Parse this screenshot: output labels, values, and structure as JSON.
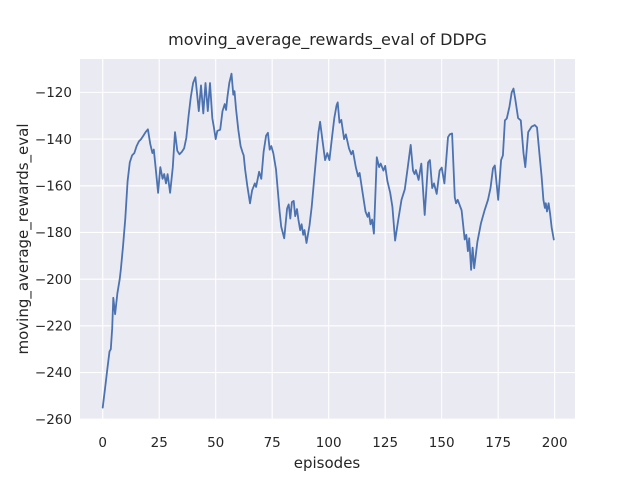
{
  "chart_data": {
    "type": "line",
    "title": "moving_average_rewards_eval of DDPG",
    "xlabel": "episodes",
    "ylabel": "moving_average_rewards_eval",
    "xlim": [
      -10.05,
      209.0
    ],
    "ylim": [
      -259.9,
      -105.7
    ],
    "grid": true,
    "legend_position": "none",
    "x_ticks": [
      0,
      25,
      50,
      75,
      100,
      125,
      150,
      175,
      200
    ],
    "x_tick_labels": [
      "0",
      "25",
      "50",
      "75",
      "100",
      "125",
      "150",
      "175",
      "200"
    ],
    "y_ticks": [
      -120,
      -140,
      -160,
      -180,
      -200,
      -220,
      -240,
      -260
    ],
    "y_tick_labels": [
      "−120",
      "−140",
      "−160",
      "−180",
      "−200",
      "−220",
      "−240",
      "−260"
    ],
    "style": {
      "line_color": "#4C72B0",
      "plot_bg": "#EAEAF2",
      "grid_color": "#FFFFFF",
      "text_color": "#262626",
      "tick_color": "#262626",
      "figure_bg": "#FFFFFF"
    },
    "series": [
      {
        "name": "moving_average_rewards_eval",
        "points": [
          [
            0,
            -255
          ],
          [
            1,
            -247
          ],
          [
            2,
            -239
          ],
          [
            3,
            -231
          ],
          [
            3.6,
            -230
          ],
          [
            4.2,
            -221
          ],
          [
            4.7,
            -208
          ],
          [
            5.5,
            -215
          ],
          [
            6.5,
            -206
          ],
          [
            7.5,
            -200
          ],
          [
            8,
            -196
          ],
          [
            9,
            -186
          ],
          [
            10,
            -174
          ],
          [
            11,
            -158
          ],
          [
            12,
            -150
          ],
          [
            13,
            -147
          ],
          [
            14,
            -146
          ],
          [
            15,
            -143
          ],
          [
            16,
            -141
          ],
          [
            17,
            -140
          ],
          [
            18,
            -138.5
          ],
          [
            19,
            -137
          ],
          [
            20,
            -135.8
          ],
          [
            21,
            -142
          ],
          [
            22,
            -146
          ],
          [
            22.6,
            -144.5
          ],
          [
            23.5,
            -153
          ],
          [
            24.5,
            -163
          ],
          [
            25.5,
            -152
          ],
          [
            26.5,
            -157
          ],
          [
            27.2,
            -155
          ],
          [
            28,
            -159
          ],
          [
            28.7,
            -155
          ],
          [
            29.8,
            -163
          ],
          [
            31,
            -152
          ],
          [
            32,
            -137
          ],
          [
            33,
            -145
          ],
          [
            34,
            -146.5
          ],
          [
            35,
            -145.5
          ],
          [
            36,
            -144
          ],
          [
            37,
            -139.5
          ],
          [
            38,
            -130
          ],
          [
            39,
            -122
          ],
          [
            40,
            -116
          ],
          [
            41,
            -113.5
          ],
          [
            42.5,
            -128
          ],
          [
            43.5,
            -117
          ],
          [
            44.5,
            -129
          ],
          [
            45.5,
            -116
          ],
          [
            46.5,
            -128
          ],
          [
            47.5,
            -116
          ],
          [
            48.5,
            -131
          ],
          [
            49.2,
            -135
          ],
          [
            50,
            -140
          ],
          [
            50.7,
            -136.5
          ],
          [
            52,
            -136
          ],
          [
            53,
            -128
          ],
          [
            54,
            -125
          ],
          [
            54.6,
            -127.5
          ],
          [
            55.2,
            -122
          ],
          [
            56,
            -116
          ],
          [
            57,
            -112
          ],
          [
            57.8,
            -121
          ],
          [
            58.3,
            -119.5
          ],
          [
            59,
            -127
          ],
          [
            60,
            -136
          ],
          [
            61,
            -143
          ],
          [
            61.8,
            -145.5
          ],
          [
            62.4,
            -147
          ],
          [
            63,
            -153
          ],
          [
            64,
            -160
          ],
          [
            65.2,
            -167.5
          ],
          [
            66.1,
            -162
          ],
          [
            67.3,
            -159
          ],
          [
            67.9,
            -160.5
          ],
          [
            69.2,
            -154
          ],
          [
            70.2,
            -157
          ],
          [
            71.2,
            -145.5
          ],
          [
            72.3,
            -138.5
          ],
          [
            73.1,
            -137.3
          ],
          [
            73.9,
            -144.5
          ],
          [
            74.6,
            -143
          ],
          [
            75.5,
            -146
          ],
          [
            76.7,
            -153
          ],
          [
            77.6,
            -163.5
          ],
          [
            78.3,
            -171
          ],
          [
            79,
            -177.5
          ],
          [
            80.3,
            -182.5
          ],
          [
            81.6,
            -169.7
          ],
          [
            82.3,
            -168
          ],
          [
            83,
            -174
          ],
          [
            83.7,
            -167
          ],
          [
            84.5,
            -166.5
          ],
          [
            85.2,
            -173
          ],
          [
            86,
            -170
          ],
          [
            86.6,
            -174.5
          ],
          [
            87.4,
            -179
          ],
          [
            88,
            -176.5
          ],
          [
            88.7,
            -181
          ],
          [
            89.3,
            -179
          ],
          [
            90.2,
            -184.5
          ],
          [
            91.5,
            -177
          ],
          [
            92.5,
            -169
          ],
          [
            93.5,
            -158
          ],
          [
            94.5,
            -147
          ],
          [
            95.5,
            -137
          ],
          [
            96.2,
            -132.6
          ],
          [
            97.3,
            -141
          ],
          [
            98.4,
            -149
          ],
          [
            99.4,
            -146
          ],
          [
            100.3,
            -149
          ],
          [
            101.5,
            -139
          ],
          [
            102.5,
            -131
          ],
          [
            103.5,
            -125.5
          ],
          [
            104,
            -124.3
          ],
          [
            104.8,
            -133
          ],
          [
            105.6,
            -131.8
          ],
          [
            106.8,
            -140
          ],
          [
            107.6,
            -138
          ],
          [
            109,
            -144
          ],
          [
            110,
            -146.5
          ],
          [
            110.7,
            -145
          ],
          [
            112,
            -152
          ],
          [
            113,
            -156
          ],
          [
            113.7,
            -154.5
          ],
          [
            115,
            -163
          ],
          [
            116.3,
            -171
          ],
          [
            117.2,
            -173.3
          ],
          [
            117.8,
            -171.5
          ],
          [
            118.5,
            -176.5
          ],
          [
            119.2,
            -174.5
          ],
          [
            120,
            -180.5
          ],
          [
            121.3,
            -147.8
          ],
          [
            122.3,
            -152
          ],
          [
            123,
            -150.5
          ],
          [
            124.2,
            -153.5
          ],
          [
            125,
            -151.5
          ],
          [
            126,
            -158
          ],
          [
            127.2,
            -163
          ],
          [
            128.2,
            -169
          ],
          [
            129.4,
            -183.5
          ],
          [
            130.8,
            -174.5
          ],
          [
            132.2,
            -166
          ],
          [
            133.7,
            -161.5
          ],
          [
            135,
            -152
          ],
          [
            136.3,
            -142.5
          ],
          [
            137.3,
            -153.5
          ],
          [
            138,
            -155
          ],
          [
            138.6,
            -153.3
          ],
          [
            139.8,
            -157.5
          ],
          [
            141,
            -150.5
          ],
          [
            142.5,
            -172.5
          ],
          [
            144,
            -150
          ],
          [
            144.8,
            -149
          ],
          [
            145.8,
            -161
          ],
          [
            146.6,
            -159
          ],
          [
            147.8,
            -163.5
          ],
          [
            149.1,
            -153.5
          ],
          [
            150,
            -152.2
          ],
          [
            151.2,
            -159
          ],
          [
            152.8,
            -139.2
          ],
          [
            153.6,
            -138
          ],
          [
            154.6,
            -137.6
          ],
          [
            155.8,
            -165
          ],
          [
            156.4,
            -167.5
          ],
          [
            157.1,
            -166
          ],
          [
            158.8,
            -170.5
          ],
          [
            160.2,
            -183
          ],
          [
            160.9,
            -181
          ],
          [
            161.6,
            -188
          ],
          [
            162.2,
            -182.5
          ],
          [
            163,
            -196
          ],
          [
            163.7,
            -186.5
          ],
          [
            164.4,
            -195.3
          ],
          [
            165.8,
            -184
          ],
          [
            167.4,
            -176
          ],
          [
            169,
            -170.5
          ],
          [
            170.5,
            -166
          ],
          [
            171.6,
            -161
          ],
          [
            172.7,
            -152.5
          ],
          [
            173.5,
            -151.3
          ],
          [
            175,
            -166
          ],
          [
            176.3,
            -149
          ],
          [
            177.1,
            -147
          ],
          [
            178,
            -132
          ],
          [
            178.8,
            -131.2
          ],
          [
            180,
            -126
          ],
          [
            181,
            -120
          ],
          [
            181.8,
            -118.4
          ],
          [
            182.6,
            -123
          ],
          [
            183.8,
            -131
          ],
          [
            185,
            -132
          ],
          [
            186.2,
            -146
          ],
          [
            187,
            -152
          ],
          [
            188.3,
            -137
          ],
          [
            189.8,
            -134.7
          ],
          [
            191.2,
            -134
          ],
          [
            192.2,
            -135
          ],
          [
            193.4,
            -147.5
          ],
          [
            194.2,
            -156
          ],
          [
            195,
            -166
          ],
          [
            195.7,
            -169.5
          ],
          [
            196.1,
            -167.5
          ],
          [
            196.6,
            -171
          ],
          [
            197.3,
            -167.5
          ],
          [
            198,
            -172
          ],
          [
            198.7,
            -178
          ],
          [
            199.6,
            -183
          ]
        ]
      }
    ]
  }
}
